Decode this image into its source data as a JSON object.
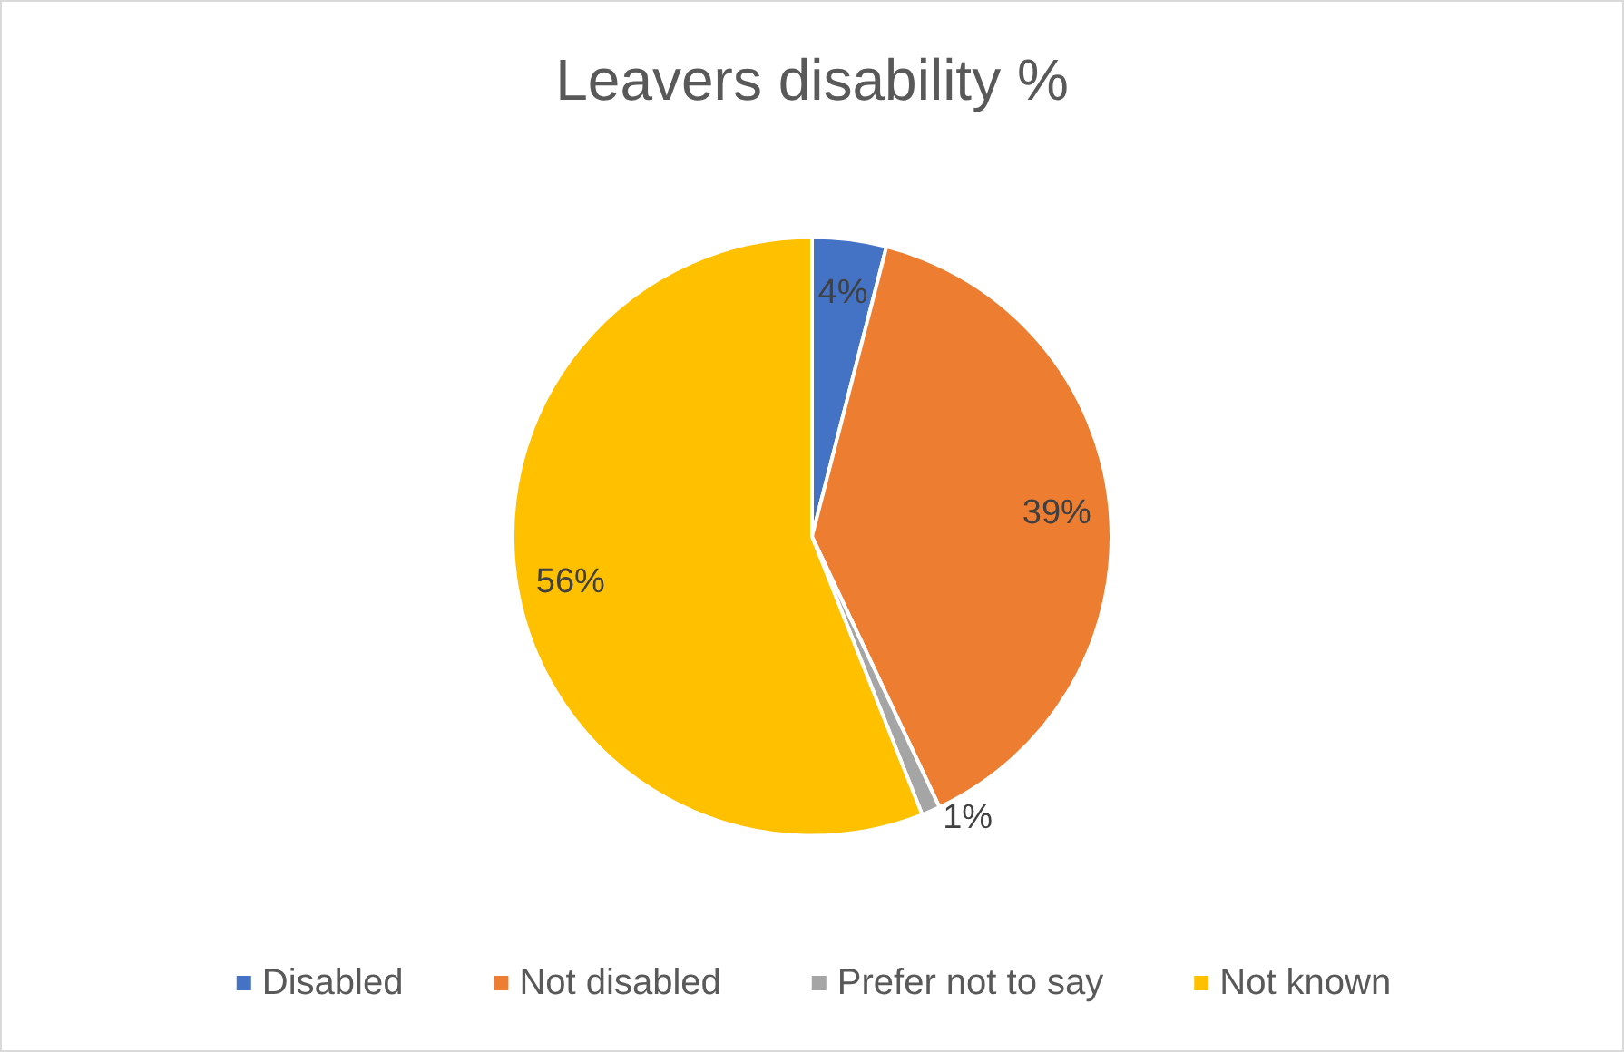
{
  "chart_data": {
    "type": "pie",
    "title": "Leavers disability %",
    "categories": [
      "Disabled",
      "Not disabled",
      "Prefer not to say",
      "Not known"
    ],
    "values": [
      4,
      39,
      1,
      56
    ],
    "colors": [
      "#4472c4",
      "#ed7d31",
      "#a5a5a5",
      "#ffc000"
    ],
    "value_labels": [
      "4%",
      "39%",
      "1%",
      "56%"
    ],
    "legend": "bottom"
  }
}
